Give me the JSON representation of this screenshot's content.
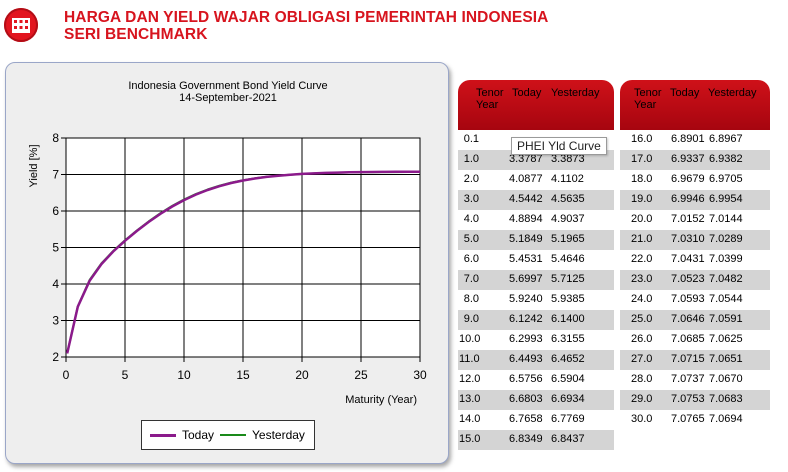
{
  "header": {
    "title_line1": "HARGA DAN YIELD WAJAR OBLIGASI PEMERINTAH INDONESIA",
    "title_line2": "SERI BENCHMARK",
    "logo_icon": "building-icon"
  },
  "chart_data": {
    "type": "line",
    "title": "Indonesia Government Bond Yield Curve",
    "subtitle": "14-September-2021",
    "xlabel": "Maturity (Year)",
    "ylabel": "Yield [%]",
    "xlim": [
      0,
      30
    ],
    "ylim": [
      2,
      8
    ],
    "x_ticks": [
      "0",
      "5",
      "10",
      "15",
      "20",
      "25",
      "30"
    ],
    "y_ticks": [
      "2",
      "3",
      "4",
      "5",
      "6",
      "7",
      "8"
    ],
    "grid": true,
    "legend_position": "bottom",
    "x": [
      0.1,
      1,
      2,
      3,
      4,
      5,
      6,
      7,
      8,
      9,
      10,
      11,
      12,
      13,
      14,
      15,
      16,
      17,
      18,
      19,
      20,
      21,
      22,
      23,
      24,
      25,
      26,
      27,
      28,
      29,
      30
    ],
    "series": [
      {
        "name": "Today",
        "color": "#8b1a8b",
        "values": [
          2.1,
          3.3787,
          4.0877,
          4.5442,
          4.8894,
          5.1849,
          5.4531,
          5.6997,
          5.924,
          6.1242,
          6.2993,
          6.4493,
          6.5756,
          6.6803,
          6.7658,
          6.8349,
          6.8901,
          6.9337,
          6.9679,
          6.9946,
          7.0152,
          7.031,
          7.0431,
          7.0523,
          7.0593,
          7.0646,
          7.0685,
          7.0715,
          7.0737,
          7.0753,
          7.0765
        ]
      },
      {
        "name": "Yesterday",
        "color": "#1a8a1a",
        "values": [
          2.1,
          3.3873,
          4.1102,
          4.5635,
          4.9037,
          5.1965,
          5.4646,
          5.7125,
          5.9385,
          6.14,
          6.3155,
          6.4652,
          6.5904,
          6.6934,
          6.7769,
          6.8437,
          6.8967,
          6.9382,
          6.9705,
          6.9954,
          7.0144,
          7.0289,
          7.0399,
          7.0482,
          7.0544,
          7.0591,
          7.0625,
          7.0651,
          7.067,
          7.0683,
          7.0694
        ]
      }
    ]
  },
  "legend": {
    "today": "Today",
    "yesterday": "Yesterday"
  },
  "tooltip": "PHEI Yld Curve",
  "table_headers": {
    "tenor": "Tenor",
    "year": "Year",
    "today": "Today",
    "yesterday": "Yesterday"
  },
  "table_left": [
    {
      "tenor": "0.1",
      "today": "",
      "yesterday": ""
    },
    {
      "tenor": "1.0",
      "today": "3.3787",
      "yesterday": "3.3873"
    },
    {
      "tenor": "2.0",
      "today": "4.0877",
      "yesterday": "4.1102"
    },
    {
      "tenor": "3.0",
      "today": "4.5442",
      "yesterday": "4.5635"
    },
    {
      "tenor": "4.0",
      "today": "4.8894",
      "yesterday": "4.9037"
    },
    {
      "tenor": "5.0",
      "today": "5.1849",
      "yesterday": "5.1965"
    },
    {
      "tenor": "6.0",
      "today": "5.4531",
      "yesterday": "5.4646"
    },
    {
      "tenor": "7.0",
      "today": "5.6997",
      "yesterday": "5.7125"
    },
    {
      "tenor": "8.0",
      "today": "5.9240",
      "yesterday": "5.9385"
    },
    {
      "tenor": "9.0",
      "today": "6.1242",
      "yesterday": "6.1400"
    },
    {
      "tenor": "10.0",
      "today": "6.2993",
      "yesterday": "6.3155"
    },
    {
      "tenor": "11.0",
      "today": "6.4493",
      "yesterday": "6.4652"
    },
    {
      "tenor": "12.0",
      "today": "6.5756",
      "yesterday": "6.5904"
    },
    {
      "tenor": "13.0",
      "today": "6.6803",
      "yesterday": "6.6934"
    },
    {
      "tenor": "14.0",
      "today": "6.7658",
      "yesterday": "6.7769"
    },
    {
      "tenor": "15.0",
      "today": "6.8349",
      "yesterday": "6.8437"
    }
  ],
  "table_right": [
    {
      "tenor": "16.0",
      "today": "6.8901",
      "yesterday": "6.8967"
    },
    {
      "tenor": "17.0",
      "today": "6.9337",
      "yesterday": "6.9382"
    },
    {
      "tenor": "18.0",
      "today": "6.9679",
      "yesterday": "6.9705"
    },
    {
      "tenor": "19.0",
      "today": "6.9946",
      "yesterday": "6.9954"
    },
    {
      "tenor": "20.0",
      "today": "7.0152",
      "yesterday": "7.0144"
    },
    {
      "tenor": "21.0",
      "today": "7.0310",
      "yesterday": "7.0289"
    },
    {
      "tenor": "22.0",
      "today": "7.0431",
      "yesterday": "7.0399"
    },
    {
      "tenor": "23.0",
      "today": "7.0523",
      "yesterday": "7.0482"
    },
    {
      "tenor": "24.0",
      "today": "7.0593",
      "yesterday": "7.0544"
    },
    {
      "tenor": "25.0",
      "today": "7.0646",
      "yesterday": "7.0591"
    },
    {
      "tenor": "26.0",
      "today": "7.0685",
      "yesterday": "7.0625"
    },
    {
      "tenor": "27.0",
      "today": "7.0715",
      "yesterday": "7.0651"
    },
    {
      "tenor": "28.0",
      "today": "7.0737",
      "yesterday": "7.0670"
    },
    {
      "tenor": "29.0",
      "today": "7.0753",
      "yesterday": "7.0683"
    },
    {
      "tenor": "30.0",
      "today": "7.0765",
      "yesterday": "7.0694"
    }
  ]
}
